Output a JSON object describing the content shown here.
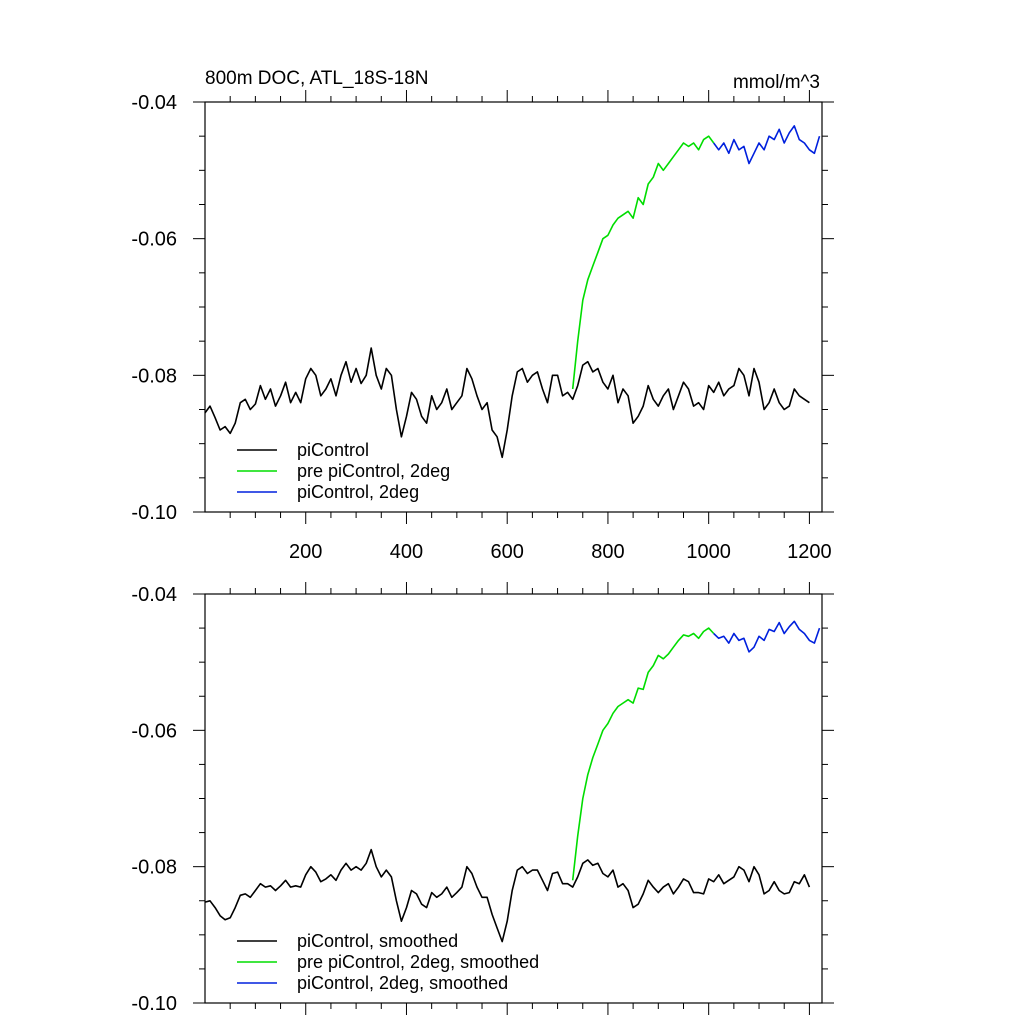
{
  "chart_data": [
    {
      "type": "line",
      "title": "800m DOC, ATL_18S-18N",
      "units": "mmol/m^3",
      "xlim": [
        0,
        1225
      ],
      "ylim": [
        -0.1,
        -0.04
      ],
      "xticks": [
        200,
        400,
        600,
        800,
        1000,
        1200
      ],
      "xtick_labels": [
        "200",
        "400",
        "600",
        "800",
        "1000",
        "1200"
      ],
      "yticks": [
        -0.04,
        -0.06,
        -0.08,
        -0.1
      ],
      "ytick_labels": [
        "-0.04",
        "-0.06",
        "-0.08",
        "-0.10"
      ],
      "show_xtick_labels": true,
      "legend_placement": "bottom-left",
      "series": [
        {
          "name": "piControl",
          "color": "#000000",
          "x": [
            0,
            10,
            20,
            30,
            40,
            50,
            60,
            70,
            80,
            90,
            100,
            110,
            120,
            130,
            140,
            150,
            160,
            170,
            180,
            190,
            200,
            210,
            220,
            230,
            240,
            250,
            260,
            270,
            280,
            290,
            300,
            310,
            320,
            330,
            340,
            350,
            360,
            370,
            380,
            390,
            400,
            410,
            420,
            430,
            440,
            450,
            460,
            470,
            480,
            490,
            500,
            510,
            520,
            530,
            540,
            550,
            560,
            570,
            580,
            590,
            600,
            610,
            620,
            630,
            640,
            650,
            660,
            670,
            680,
            690,
            700,
            710,
            720,
            730,
            740,
            750,
            760,
            770,
            780,
            790,
            800,
            810,
            820,
            830,
            840,
            850,
            860,
            870,
            880,
            890,
            900,
            910,
            920,
            930,
            940,
            950,
            960,
            970,
            980,
            990,
            1000,
            1010,
            1020,
            1030,
            1040,
            1050,
            1060,
            1070,
            1080,
            1090,
            1100,
            1110,
            1120,
            1130,
            1140,
            1150,
            1160,
            1170,
            1180,
            1190,
            1200
          ],
          "values": [
            -0.0855,
            -0.0845,
            -0.0862,
            -0.088,
            -0.0875,
            -0.0885,
            -0.087,
            -0.084,
            -0.0835,
            -0.085,
            -0.0842,
            -0.0815,
            -0.0835,
            -0.082,
            -0.0845,
            -0.083,
            -0.081,
            -0.084,
            -0.0825,
            -0.084,
            -0.0805,
            -0.079,
            -0.08,
            -0.083,
            -0.082,
            -0.0805,
            -0.083,
            -0.08,
            -0.078,
            -0.081,
            -0.079,
            -0.0812,
            -0.08,
            -0.076,
            -0.08,
            -0.082,
            -0.079,
            -0.08,
            -0.085,
            -0.089,
            -0.086,
            -0.0825,
            -0.0835,
            -0.086,
            -0.087,
            -0.083,
            -0.085,
            -0.084,
            -0.082,
            -0.085,
            -0.084,
            -0.083,
            -0.079,
            -0.0805,
            -0.083,
            -0.085,
            -0.084,
            -0.088,
            -0.089,
            -0.092,
            -0.088,
            -0.083,
            -0.0795,
            -0.079,
            -0.081,
            -0.08,
            -0.0795,
            -0.082,
            -0.084,
            -0.08,
            -0.08,
            -0.083,
            -0.0825,
            -0.0835,
            -0.0815,
            -0.0785,
            -0.078,
            -0.0795,
            -0.079,
            -0.081,
            -0.082,
            -0.08,
            -0.084,
            -0.082,
            -0.083,
            -0.087,
            -0.086,
            -0.0845,
            -0.0815,
            -0.0835,
            -0.0845,
            -0.083,
            -0.082,
            -0.085,
            -0.083,
            -0.081,
            -0.082,
            -0.0845,
            -0.084,
            -0.085,
            -0.0815,
            -0.0825,
            -0.081,
            -0.083,
            -0.082,
            -0.0815,
            -0.079,
            -0.08,
            -0.083,
            -0.079,
            -0.081,
            -0.085,
            -0.084,
            -0.082,
            -0.084,
            -0.085,
            -0.0845,
            -0.082,
            -0.083,
            -0.0835,
            -0.084
          ]
        },
        {
          "name": "pre piControl, 2deg",
          "color": "#00dd00",
          "x": [
            730,
            740,
            750,
            760,
            770,
            780,
            790,
            800,
            810,
            820,
            830,
            840,
            850,
            860,
            870,
            880,
            890,
            900,
            910,
            920,
            930,
            940,
            950,
            960,
            970,
            980,
            990,
            1000,
            1010
          ],
          "values": [
            -0.082,
            -0.075,
            -0.069,
            -0.066,
            -0.064,
            -0.062,
            -0.06,
            -0.0595,
            -0.058,
            -0.057,
            -0.0565,
            -0.056,
            -0.057,
            -0.054,
            -0.055,
            -0.052,
            -0.051,
            -0.049,
            -0.05,
            -0.049,
            -0.048,
            -0.047,
            -0.046,
            -0.0465,
            -0.046,
            -0.047,
            -0.0455,
            -0.045,
            -0.046
          ]
        },
        {
          "name": "piControl, 2deg",
          "color": "#0020dd",
          "x": [
            1010,
            1020,
            1030,
            1040,
            1050,
            1060,
            1070,
            1080,
            1090,
            1100,
            1110,
            1120,
            1130,
            1140,
            1150,
            1160,
            1170,
            1180,
            1190,
            1200,
            1210,
            1220
          ],
          "values": [
            -0.046,
            -0.047,
            -0.046,
            -0.0475,
            -0.0455,
            -0.047,
            -0.0465,
            -0.049,
            -0.0475,
            -0.046,
            -0.047,
            -0.045,
            -0.0455,
            -0.044,
            -0.046,
            -0.0445,
            -0.0435,
            -0.0455,
            -0.046,
            -0.047,
            -0.0475,
            -0.045
          ]
        }
      ]
    },
    {
      "type": "line",
      "title": "",
      "units": "",
      "xlim": [
        0,
        1225
      ],
      "ylim": [
        -0.1,
        -0.04
      ],
      "xticks": [
        200,
        400,
        600,
        800,
        1000,
        1200
      ],
      "xtick_labels": [
        "200",
        "400",
        "600",
        "800",
        "1000",
        "1200"
      ],
      "yticks": [
        -0.04,
        -0.06,
        -0.08,
        -0.1
      ],
      "ytick_labels": [
        "-0.04",
        "-0.06",
        "-0.08",
        "-0.10"
      ],
      "show_xtick_labels": false,
      "legend_placement": "bottom-left",
      "series": [
        {
          "name": "piControl, smoothed",
          "color": "#000000",
          "x": [
            0,
            10,
            20,
            30,
            40,
            50,
            60,
            70,
            80,
            90,
            100,
            110,
            120,
            130,
            140,
            150,
            160,
            170,
            180,
            190,
            200,
            210,
            220,
            230,
            240,
            250,
            260,
            270,
            280,
            290,
            300,
            310,
            320,
            330,
            340,
            350,
            360,
            370,
            380,
            390,
            400,
            410,
            420,
            430,
            440,
            450,
            460,
            470,
            480,
            490,
            500,
            510,
            520,
            530,
            540,
            550,
            560,
            570,
            580,
            590,
            600,
            610,
            620,
            630,
            640,
            650,
            660,
            670,
            680,
            690,
            700,
            710,
            720,
            730,
            740,
            750,
            760,
            770,
            780,
            790,
            800,
            810,
            820,
            830,
            840,
            850,
            860,
            870,
            880,
            890,
            900,
            910,
            920,
            930,
            940,
            950,
            960,
            970,
            980,
            990,
            1000,
            1010,
            1020,
            1030,
            1040,
            1050,
            1060,
            1070,
            1080,
            1090,
            1100,
            1110,
            1120,
            1130,
            1140,
            1150,
            1160,
            1170,
            1180,
            1190,
            1200
          ],
          "values": [
            -0.0852,
            -0.085,
            -0.086,
            -0.0872,
            -0.0878,
            -0.0875,
            -0.086,
            -0.0842,
            -0.084,
            -0.0845,
            -0.0835,
            -0.0825,
            -0.083,
            -0.0828,
            -0.0835,
            -0.0828,
            -0.082,
            -0.083,
            -0.0828,
            -0.083,
            -0.0812,
            -0.08,
            -0.0808,
            -0.0822,
            -0.0818,
            -0.0812,
            -0.082,
            -0.0805,
            -0.0795,
            -0.0805,
            -0.08,
            -0.0805,
            -0.0795,
            -0.0775,
            -0.08,
            -0.0815,
            -0.0805,
            -0.0815,
            -0.085,
            -0.088,
            -0.086,
            -0.0835,
            -0.084,
            -0.0855,
            -0.086,
            -0.0838,
            -0.0845,
            -0.084,
            -0.083,
            -0.0845,
            -0.0838,
            -0.083,
            -0.08,
            -0.081,
            -0.083,
            -0.0845,
            -0.0845,
            -0.087,
            -0.089,
            -0.091,
            -0.088,
            -0.0835,
            -0.0805,
            -0.08,
            -0.081,
            -0.0805,
            -0.0805,
            -0.082,
            -0.0835,
            -0.081,
            -0.0808,
            -0.0825,
            -0.0825,
            -0.083,
            -0.0815,
            -0.0795,
            -0.079,
            -0.0798,
            -0.0795,
            -0.081,
            -0.0815,
            -0.0805,
            -0.083,
            -0.0825,
            -0.0835,
            -0.086,
            -0.0855,
            -0.084,
            -0.082,
            -0.083,
            -0.0838,
            -0.083,
            -0.0825,
            -0.084,
            -0.083,
            -0.0818,
            -0.0822,
            -0.0838,
            -0.0838,
            -0.084,
            -0.0818,
            -0.0822,
            -0.0812,
            -0.0825,
            -0.082,
            -0.0815,
            -0.08,
            -0.0805,
            -0.0822,
            -0.08,
            -0.0812,
            -0.084,
            -0.0835,
            -0.0822,
            -0.0835,
            -0.084,
            -0.0838,
            -0.0822,
            -0.0825,
            -0.0812,
            -0.083
          ]
        },
        {
          "name": "pre piControl, 2deg, smoothed",
          "color": "#00dd00",
          "x": [
            730,
            740,
            750,
            760,
            770,
            780,
            790,
            800,
            810,
            820,
            830,
            840,
            850,
            860,
            870,
            880,
            890,
            900,
            910,
            920,
            930,
            940,
            950,
            960,
            970,
            980,
            990,
            1000,
            1010
          ],
          "values": [
            -0.082,
            -0.0755,
            -0.07,
            -0.0665,
            -0.064,
            -0.062,
            -0.06,
            -0.059,
            -0.0575,
            -0.0565,
            -0.056,
            -0.0555,
            -0.056,
            -0.0538,
            -0.054,
            -0.0515,
            -0.0505,
            -0.049,
            -0.0495,
            -0.0488,
            -0.0478,
            -0.0468,
            -0.046,
            -0.0462,
            -0.0458,
            -0.0465,
            -0.0455,
            -0.045,
            -0.0458
          ]
        },
        {
          "name": "piControl, 2deg, smoothed",
          "color": "#0020dd",
          "x": [
            1010,
            1020,
            1030,
            1040,
            1050,
            1060,
            1070,
            1080,
            1090,
            1100,
            1110,
            1120,
            1130,
            1140,
            1150,
            1160,
            1170,
            1180,
            1190,
            1200,
            1210,
            1220
          ],
          "values": [
            -0.0458,
            -0.0465,
            -0.0462,
            -0.0472,
            -0.0458,
            -0.0468,
            -0.0465,
            -0.0485,
            -0.0478,
            -0.0462,
            -0.0468,
            -0.0452,
            -0.0455,
            -0.0442,
            -0.0458,
            -0.0448,
            -0.044,
            -0.0452,
            -0.0458,
            -0.0468,
            -0.0472,
            -0.045
          ]
        }
      ]
    }
  ]
}
